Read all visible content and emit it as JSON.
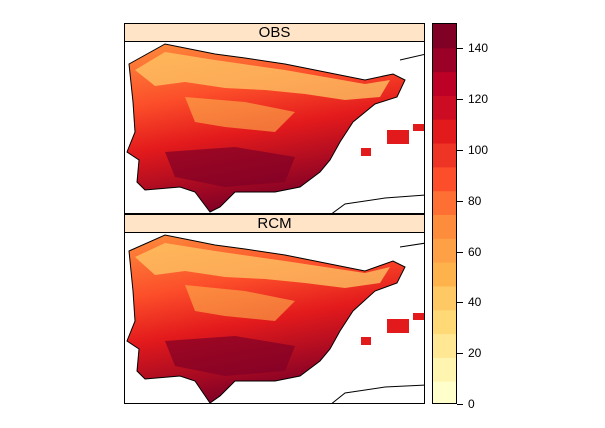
{
  "panels": [
    {
      "title": "OBS"
    },
    {
      "title": "RCM"
    }
  ],
  "colorbar": {
    "min": 0,
    "max": 150,
    "ticks": [
      "0",
      "20",
      "40",
      "60",
      "80",
      "100",
      "120",
      "140"
    ],
    "colors": [
      "#ffffcc",
      "#fff4b0",
      "#ffe793",
      "#fed976",
      "#fec865",
      "#feb24c",
      "#fea045",
      "#fd8d3c",
      "#fd6f32",
      "#fc4e2a",
      "#ee3424",
      "#e31a1c",
      "#cc0c22",
      "#bd0026",
      "#9b0026",
      "#800026"
    ]
  }
}
